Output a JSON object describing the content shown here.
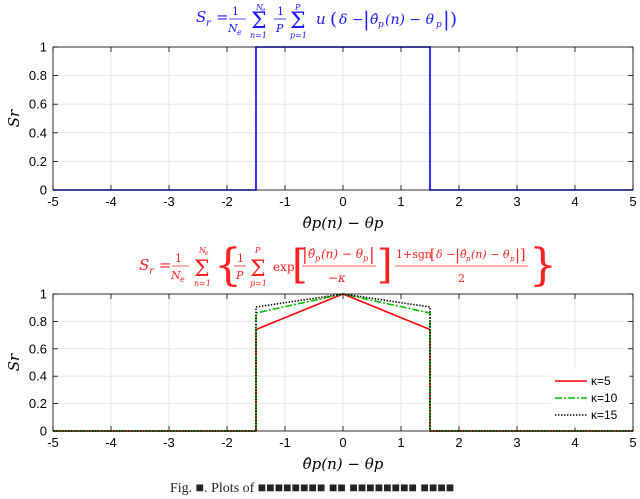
{
  "chart_data": [
    {
      "type": "line",
      "title": "S_r = (1/N_e) Σ_{n=1}^{N_e} (1/P) Σ_{p=1}^{P} u(δ − |θ̂_p(n) − θ_p|)",
      "title_color": "#1a1aff",
      "xlabel": "θ̂p(n) − θp",
      "ylabel": "Sr",
      "xlim": [
        -5,
        5
      ],
      "ylim": [
        0,
        1
      ],
      "x_ticks": [
        "-5",
        "-4",
        "-3",
        "-2",
        "-1",
        "0",
        "1",
        "2",
        "3",
        "4",
        "5"
      ],
      "y_ticks": [
        "0",
        "0.2",
        "0.4",
        "0.6",
        "0.8",
        "1"
      ],
      "grid": true,
      "series": [
        {
          "color": "#0000ff",
          "style": "solid",
          "x": [
            -5,
            -1.5,
            -1.5,
            1.5,
            1.5,
            5
          ],
          "y": [
            0,
            0,
            1,
            1,
            0,
            0
          ]
        }
      ]
    },
    {
      "type": "line",
      "title": "S_r = (1/N_e) Σ_{n=1}^{N_e} { (1/P) Σ_{p=1}^{P} exp[ |θ̂_p(n) − θ_p| / −κ ] · (1+sgn[δ − |θ̂_p(n) − θ_p|])/2 }",
      "title_color": "#ff2020",
      "xlabel": "θ̂p(n) − θp",
      "ylabel": "Sr",
      "xlim": [
        -5,
        5
      ],
      "ylim": [
        0,
        1
      ],
      "x_ticks": [
        "-5",
        "-4",
        "-3",
        "-2",
        "-1",
        "0",
        "1",
        "2",
        "3",
        "4",
        "5"
      ],
      "y_ticks": [
        "0",
        "0.2",
        "0.4",
        "0.6",
        "0.8",
        "1"
      ],
      "grid": true,
      "legend_position": "bottom-right",
      "series": [
        {
          "name": "κ=5",
          "color": "#ff0000",
          "style": "solid",
          "x": [
            -5,
            -1.5,
            -1.5,
            0,
            1.5,
            1.5,
            5
          ],
          "y": [
            0,
            0,
            0.741,
            1,
            0.741,
            0,
            0
          ]
        },
        {
          "name": "κ=10",
          "color": "#00c000",
          "style": "dashdot",
          "x": [
            -5,
            -1.5,
            -1.5,
            0,
            1.5,
            1.5,
            5
          ],
          "y": [
            0,
            0,
            0.861,
            1,
            0.861,
            0,
            0
          ]
        },
        {
          "name": "κ=15",
          "color": "#000000",
          "style": "dotted",
          "x": [
            -5,
            -1.5,
            -1.5,
            0,
            1.5,
            1.5,
            5
          ],
          "y": [
            0,
            0,
            0.905,
            1,
            0.905,
            0,
            0
          ]
        }
      ]
    }
  ],
  "caption": "Fig. ■. Plots of ■■■■■■■■ ■■ ■■■■■■■■ ■■■■"
}
